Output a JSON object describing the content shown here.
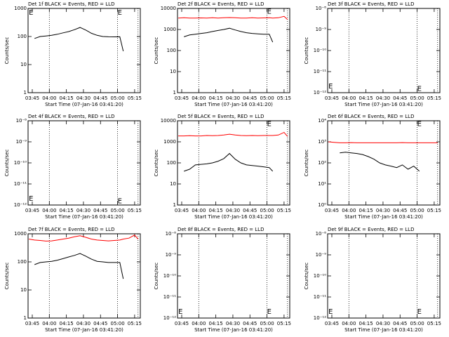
{
  "chart_data": [
    {
      "type": "line",
      "title": "Det 1f BLACK = Events, RED = LLD",
      "y_label": "Counts/sec",
      "x_label": "Start Time (07-Jan-16 03:41:20)",
      "log_y": true,
      "xlim": [
        221.3,
        320
      ],
      "ylim": [
        1,
        1000
      ],
      "yticks": [
        1,
        10,
        100,
        1000
      ],
      "xticks": [
        {
          "value": 225,
          "label": "03:45"
        },
        {
          "value": 240,
          "label": "04:00"
        },
        {
          "value": 255,
          "label": "04:15"
        },
        {
          "value": 270,
          "label": "04:30"
        },
        {
          "value": 285,
          "label": "04:45"
        },
        {
          "value": 300,
          "label": "05:00"
        },
        {
          "value": 315,
          "label": "05:15"
        }
      ],
      "vlines": [
        240,
        300,
        318
      ],
      "x": [
        222,
        227,
        232,
        237,
        242,
        247,
        252,
        257,
        262,
        267,
        272,
        277,
        282,
        287,
        292,
        297,
        302,
        305,
        310,
        315,
        318
      ],
      "series": [
        {
          "color": "#000000",
          "values": [
            null,
            85,
            100,
            105,
            110,
            120,
            135,
            150,
            175,
            210,
            170,
            130,
            110,
            100,
            98,
            97,
            98,
            30,
            null,
            null,
            null
          ]
        }
      ],
      "annotations": [
        {
          "x": 222,
          "y": 700,
          "text": "E"
        },
        {
          "x": 300,
          "y": 700,
          "text": "E"
        }
      ]
    },
    {
      "type": "line",
      "title": "Det 2f BLACK = Events, RED = LLD",
      "y_label": "Counts/sec",
      "x_label": "Start Time (07-Jan-16 03:41:20)",
      "log_y": true,
      "xlim": [
        221.3,
        320
      ],
      "ylim": [
        1,
        10000
      ],
      "yticks": [
        1,
        10,
        100,
        1000,
        10000
      ],
      "xticks": [
        {
          "value": 225,
          "label": "03:45"
        },
        {
          "value": 240,
          "label": "04:00"
        },
        {
          "value": 255,
          "label": "04:15"
        },
        {
          "value": 270,
          "label": "04:30"
        },
        {
          "value": 285,
          "label": "04:45"
        },
        {
          "value": 300,
          "label": "05:00"
        },
        {
          "value": 315,
          "label": "05:15"
        }
      ],
      "vlines": [
        240,
        300,
        318
      ],
      "x": [
        222,
        227,
        232,
        237,
        242,
        247,
        252,
        257,
        262,
        267,
        272,
        277,
        282,
        287,
        292,
        297,
        302,
        305,
        310,
        315,
        318
      ],
      "series": [
        {
          "color": "#ff0000",
          "values": [
            3500,
            3600,
            3500,
            3500,
            3550,
            3500,
            3600,
            3500,
            3600,
            3700,
            3600,
            3500,
            3500,
            3600,
            3500,
            3550,
            3600,
            3500,
            3600,
            4200,
            3000
          ]
        },
        {
          "color": "#000000",
          "values": [
            null,
            450,
            550,
            600,
            650,
            700,
            800,
            900,
            1000,
            1150,
            950,
            800,
            700,
            650,
            620,
            600,
            600,
            250,
            null,
            null,
            null
          ]
        }
      ],
      "annotations": [
        {
          "x": 300,
          "y": 7000,
          "text": "E"
        }
      ]
    },
    {
      "type": "line",
      "title": "Det 3f BLACK = Events, RED = LLD",
      "y_label": "Counts/sec",
      "x_label": "Start Time (07-Jan-16 03:41:20)",
      "log_y": true,
      "xlim": [
        221.3,
        320
      ],
      "ylim": [
        1e-12,
        1e-08
      ],
      "yticks": [
        {
          "value": 1e-12,
          "label": "10⁻¹²"
        },
        {
          "value": 1e-11,
          "label": "10⁻¹¹"
        },
        {
          "value": 1e-10,
          "label": "10⁻¹⁰"
        },
        {
          "value": 1e-09,
          "label": "10⁻⁹"
        },
        {
          "value": 1e-08,
          "label": "10⁻⁸"
        }
      ],
      "xticks": [
        {
          "value": 225,
          "label": "03:45"
        },
        {
          "value": 240,
          "label": "04:00"
        },
        {
          "value": 255,
          "label": "04:15"
        },
        {
          "value": 270,
          "label": "04:30"
        },
        {
          "value": 285,
          "label": "04:45"
        },
        {
          "value": 300,
          "label": "05:00"
        },
        {
          "value": 315,
          "label": "05:15"
        }
      ],
      "vlines": [
        240,
        300,
        318
      ],
      "x": [],
      "series": [],
      "annotations": [
        {
          "x": 222,
          "y": 2e-12,
          "text": "E"
        },
        {
          "x": 300,
          "y": 1.5e-12,
          "text": "E"
        }
      ]
    },
    {
      "type": "line",
      "title": "Det 4f BLACK = Events, RED = LLD",
      "y_label": "Counts/sec",
      "x_label": "Start Time (07-Jan-16 03:41:20)",
      "log_y": true,
      "xlim": [
        221.3,
        320
      ],
      "ylim": [
        1e-12,
        1e-08
      ],
      "yticks": [
        {
          "value": 1e-12,
          "label": "10⁻¹²"
        },
        {
          "value": 1e-11,
          "label": "10⁻¹¹"
        },
        {
          "value": 1e-10,
          "label": "10⁻¹⁰"
        },
        {
          "value": 1e-09,
          "label": "10⁻⁹"
        },
        {
          "value": 1e-08,
          "label": "10⁻⁸"
        }
      ],
      "xticks": [
        {
          "value": 225,
          "label": "03:45"
        },
        {
          "value": 240,
          "label": "04:00"
        },
        {
          "value": 255,
          "label": "04:15"
        },
        {
          "value": 270,
          "label": "04:30"
        },
        {
          "value": 285,
          "label": "04:45"
        },
        {
          "value": 300,
          "label": "05:00"
        },
        {
          "value": 315,
          "label": "05:15"
        }
      ],
      "vlines": [
        240,
        300,
        318
      ],
      "x": [],
      "series": [],
      "annotations": [
        {
          "x": 222,
          "y": 2e-12,
          "text": "E"
        },
        {
          "x": 300,
          "y": 1.5e-12,
          "text": "E"
        }
      ]
    },
    {
      "type": "line",
      "title": "Det 5f BLACK = Events, RED = LLD",
      "y_label": "Counts/sec",
      "x_label": "Start Time (07-Jan-16 03:41:20)",
      "log_y": true,
      "xlim": [
        221.3,
        320
      ],
      "ylim": [
        1,
        10000
      ],
      "yticks": [
        1,
        10,
        100,
        1000,
        10000
      ],
      "xticks": [
        {
          "value": 225,
          "label": "03:45"
        },
        {
          "value": 240,
          "label": "04:00"
        },
        {
          "value": 255,
          "label": "04:15"
        },
        {
          "value": 270,
          "label": "04:30"
        },
        {
          "value": 285,
          "label": "04:45"
        },
        {
          "value": 300,
          "label": "05:00"
        },
        {
          "value": 315,
          "label": "05:15"
        }
      ],
      "vlines": [
        240,
        300,
        318
      ],
      "x": [
        222,
        227,
        232,
        237,
        242,
        247,
        252,
        257,
        262,
        267,
        272,
        277,
        282,
        287,
        292,
        297,
        302,
        305,
        310,
        315,
        318
      ],
      "series": [
        {
          "color": "#ff0000",
          "values": [
            1900,
            1900,
            1950,
            1900,
            1900,
            2000,
            1950,
            2000,
            2100,
            2300,
            2100,
            2000,
            1950,
            2000,
            1950,
            2000,
            2000,
            2000,
            2100,
            2800,
            1800
          ]
        },
        {
          "color": "#000000",
          "values": [
            null,
            40,
            50,
            80,
            85,
            90,
            100,
            120,
            160,
            280,
            150,
            100,
            80,
            75,
            70,
            65,
            60,
            40,
            null,
            null,
            null
          ]
        }
      ],
      "annotations": [
        {
          "x": 300,
          "y": 7000,
          "text": "E"
        }
      ]
    },
    {
      "type": "line",
      "title": "Det 6f BLACK = Events, RED = LLD",
      "y_label": "Counts/sec",
      "x_label": "Start Time (07-Jan-16 03:41:20)",
      "log_y": true,
      "xlim": [
        221.3,
        320
      ],
      "ylim": [
        1,
        10000
      ],
      "yticks": [
        {
          "value": 1,
          "label": "10⁰"
        },
        {
          "value": 10,
          "label": "10¹"
        },
        {
          "value": 100,
          "label": "10²"
        },
        {
          "value": 1000,
          "label": "10³"
        },
        {
          "value": 10000,
          "label": "10⁴"
        }
      ],
      "xticks": [
        {
          "value": 225,
          "label": "03:45"
        },
        {
          "value": 240,
          "label": "04:00"
        },
        {
          "value": 255,
          "label": "04:15"
        },
        {
          "value": 270,
          "label": "04:30"
        },
        {
          "value": 285,
          "label": "04:45"
        },
        {
          "value": 300,
          "label": "05:00"
        },
        {
          "value": 315,
          "label": "05:15"
        }
      ],
      "vlines": [
        240,
        300,
        318
      ],
      "x": [
        222,
        227,
        232,
        237,
        242,
        247,
        252,
        257,
        262,
        267,
        272,
        277,
        282,
        287,
        292,
        297,
        302,
        305,
        310,
        315,
        318
      ],
      "series": [
        {
          "color": "#ff0000",
          "values": [
            1000,
            950,
            900,
            900,
            920,
            900,
            900,
            900,
            900,
            900,
            900,
            900,
            900,
            920,
            900,
            900,
            900,
            900,
            900,
            900,
            900
          ]
        },
        {
          "color": "#000000",
          "values": [
            null,
            null,
            300,
            320,
            300,
            280,
            250,
            200,
            150,
            100,
            80,
            70,
            60,
            80,
            50,
            70,
            40,
            null,
            null,
            null,
            null
          ]
        }
      ],
      "annotations": [
        {
          "x": 300,
          "y": 7000,
          "text": "E"
        }
      ]
    },
    {
      "type": "line",
      "title": "Det 7f BLACK = Events, RED = LLD",
      "y_label": "Counts/sec",
      "x_label": "Start Time (07-Jan-16 03:41:20)",
      "log_y": true,
      "xlim": [
        221.3,
        320
      ],
      "ylim": [
        1,
        1000
      ],
      "yticks": [
        1,
        10,
        100,
        1000
      ],
      "xticks": [
        {
          "value": 225,
          "label": "03:45"
        },
        {
          "value": 240,
          "label": "04:00"
        },
        {
          "value": 255,
          "label": "04:15"
        },
        {
          "value": 270,
          "label": "04:30"
        },
        {
          "value": 285,
          "label": "04:45"
        },
        {
          "value": 300,
          "label": "05:00"
        },
        {
          "value": 315,
          "label": "05:15"
        }
      ],
      "vlines": [
        240,
        300,
        318
      ],
      "x": [
        222,
        227,
        232,
        237,
        242,
        247,
        252,
        257,
        262,
        267,
        272,
        277,
        282,
        287,
        292,
        297,
        302,
        305,
        310,
        315,
        318
      ],
      "series": [
        {
          "color": "#ff0000",
          "values": [
            650,
            600,
            580,
            550,
            560,
            600,
            650,
            700,
            780,
            850,
            750,
            650,
            600,
            580,
            560,
            580,
            600,
            650,
            700,
            900,
            650
          ]
        },
        {
          "color": "#000000",
          "values": [
            null,
            80,
            95,
            100,
            105,
            115,
            130,
            150,
            170,
            200,
            160,
            125,
            105,
            100,
            95,
            95,
            95,
            25,
            null,
            null,
            null
          ]
        }
      ],
      "annotations": []
    },
    {
      "type": "line",
      "title": "Det 8f BLACK = Events, RED = LLD",
      "y_label": "Counts/sec",
      "x_label": "Start Time (07-Jan-16 03:41:20)",
      "log_y": true,
      "xlim": [
        221.3,
        320
      ],
      "ylim": [
        1e-12,
        1e-08
      ],
      "yticks": [
        {
          "value": 1e-12,
          "label": "10⁻¹²"
        },
        {
          "value": 1e-11,
          "label": "10⁻¹¹"
        },
        {
          "value": 1e-10,
          "label": "10⁻¹⁰"
        },
        {
          "value": 1e-09,
          "label": "10⁻⁹"
        },
        {
          "value": 1e-08,
          "label": "10⁻⁸"
        }
      ],
      "xticks": [
        {
          "value": 225,
          "label": "03:45"
        },
        {
          "value": 240,
          "label": "04:00"
        },
        {
          "value": 255,
          "label": "04:15"
        },
        {
          "value": 270,
          "label": "04:30"
        },
        {
          "value": 285,
          "label": "04:45"
        },
        {
          "value": 300,
          "label": "05:00"
        },
        {
          "value": 315,
          "label": "05:15"
        }
      ],
      "vlines": [
        240,
        300,
        318
      ],
      "x": [],
      "series": [],
      "annotations": [
        {
          "x": 222,
          "y": 2e-12,
          "text": "E"
        },
        {
          "x": 300,
          "y": 2e-12,
          "text": "E"
        }
      ]
    },
    {
      "type": "line",
      "title": "Det 9f BLACK = Events, RED = LLD",
      "y_label": "Counts/sec",
      "x_label": "Start Time (07-Jan-16 03:41:20)",
      "log_y": true,
      "xlim": [
        221.3,
        320
      ],
      "ylim": [
        1e-12,
        1e-08
      ],
      "yticks": [
        {
          "value": 1e-12,
          "label": "10⁻¹²"
        },
        {
          "value": 1e-11,
          "label": "10⁻¹¹"
        },
        {
          "value": 1e-10,
          "label": "10⁻¹⁰"
        },
        {
          "value": 1e-09,
          "label": "10⁻⁹"
        },
        {
          "value": 1e-08,
          "label": "10⁻⁸"
        }
      ],
      "xticks": [
        {
          "value": 225,
          "label": "03:45"
        },
        {
          "value": 240,
          "label": "04:00"
        },
        {
          "value": 255,
          "label": "04:15"
        },
        {
          "value": 270,
          "label": "04:30"
        },
        {
          "value": 285,
          "label": "04:45"
        },
        {
          "value": 300,
          "label": "05:00"
        },
        {
          "value": 315,
          "label": "05:15"
        }
      ],
      "vlines": [
        240,
        300,
        318
      ],
      "x": [],
      "series": [],
      "annotations": [
        {
          "x": 222,
          "y": 2e-12,
          "text": "E"
        },
        {
          "x": 300,
          "y": 2e-12,
          "text": "E"
        }
      ]
    }
  ]
}
